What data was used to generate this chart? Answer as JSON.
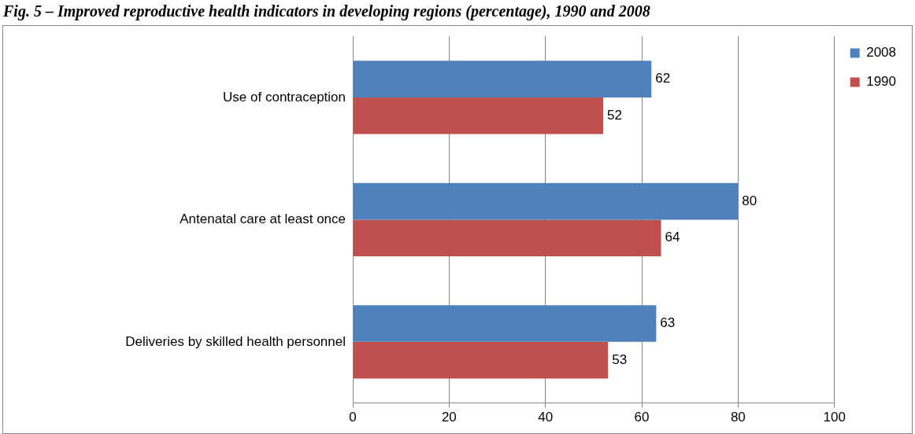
{
  "chart_data": {
    "type": "bar",
    "orientation": "horizontal",
    "title": "Fig. 5 – Improved reproductive health indicators in developing regions (percentage), 1990 and 2008",
    "categories": [
      "Use of contraception",
      "Antenatal care at least once",
      "Deliveries by skilled health personnel"
    ],
    "series": [
      {
        "name": "2008",
        "color": "#4f81bd",
        "values": [
          62,
          80,
          63
        ]
      },
      {
        "name": "1990",
        "color": "#c0504d",
        "values": [
          52,
          64,
          53
        ]
      }
    ],
    "xlim": [
      0,
      100
    ],
    "xticks": [
      0,
      20,
      40,
      60,
      80,
      100
    ],
    "grid": "x",
    "legend": "top right",
    "data_labels": true
  }
}
